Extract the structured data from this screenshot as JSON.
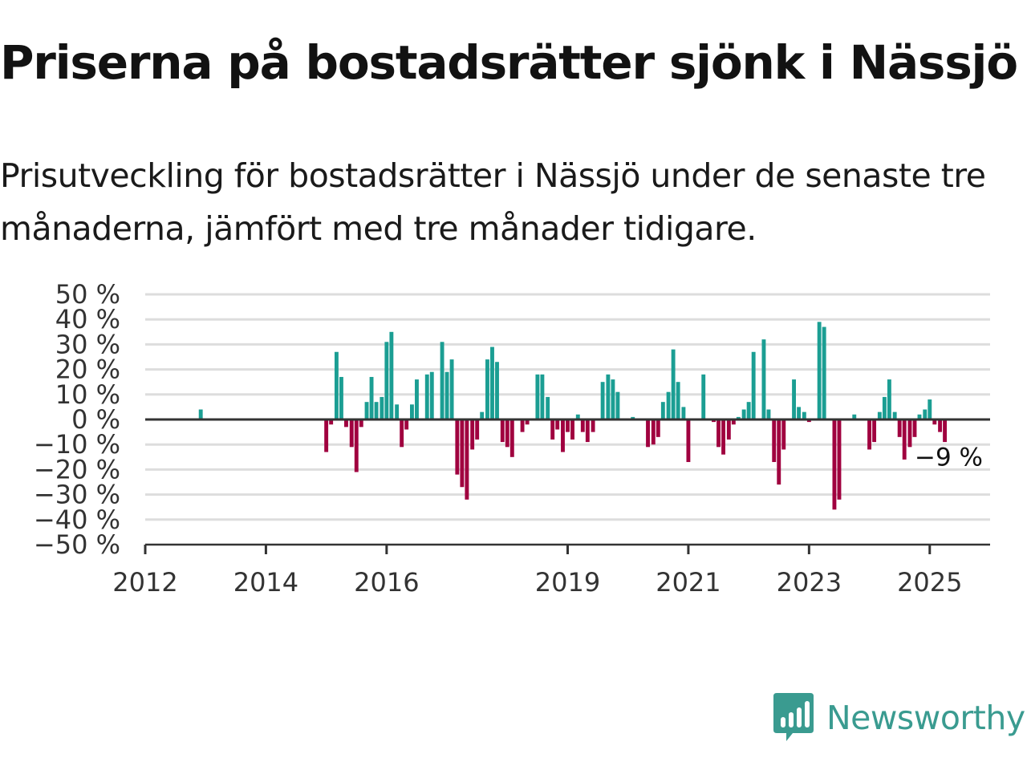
{
  "title": "Priserna på bostadsrätter sjönk i Nässjö",
  "subtitle": "Prisutveckling för bostadsrätter i Nässjö under de senaste tre månaderna, jämfört med tre månader tidigare.",
  "brand": {
    "name": "Newsworthy",
    "color": "#3a9b90",
    "logo_icon": "bar-chart-speech-bubble-icon"
  },
  "colors": {
    "positive": "#1b9e93",
    "negative": "#a0003f",
    "grid": "#dddddd",
    "axis": "#333333"
  },
  "chart_data": {
    "type": "bar",
    "title": "Priserna på bostadsrätter sjönk i Nässjö",
    "subtitle": "Prisutveckling för bostadsrätter i Nässjö under de senaste tre månaderna, jämfört med tre månader tidigare.",
    "xlabel": "",
    "ylabel": "",
    "ylim": [
      -50,
      50
    ],
    "xlim": [
      2012.0,
      2026.0
    ],
    "y_ticks": [
      50,
      40,
      30,
      20,
      10,
      0,
      -10,
      -20,
      -30,
      -40,
      -50
    ],
    "y_tick_labels": [
      "50 %",
      "40 %",
      "30 %",
      "20 %",
      "10 %",
      "0 %",
      "−10 %",
      "−20 %",
      "−30 %",
      "−40 %",
      "−50 %"
    ],
    "x_ticks": [
      2012,
      2014,
      2016,
      2019,
      2021,
      2023,
      2025
    ],
    "x_tick_labels": [
      "2012",
      "2014",
      "2016",
      "2019",
      "2021",
      "2023",
      "2025"
    ],
    "grid": true,
    "last_value_label": "−9 %",
    "unit": "%",
    "bars": [
      {
        "x": 2012.92,
        "value": 4
      },
      {
        "x": 2015.0,
        "value": -13
      },
      {
        "x": 2015.08,
        "value": -2
      },
      {
        "x": 2015.17,
        "value": 27
      },
      {
        "x": 2015.25,
        "value": 17
      },
      {
        "x": 2015.33,
        "value": -3
      },
      {
        "x": 2015.42,
        "value": -11
      },
      {
        "x": 2015.5,
        "value": -21
      },
      {
        "x": 2015.58,
        "value": -3
      },
      {
        "x": 2015.67,
        "value": 7
      },
      {
        "x": 2015.75,
        "value": 17
      },
      {
        "x": 2015.83,
        "value": 7
      },
      {
        "x": 2015.92,
        "value": 9
      },
      {
        "x": 2016.0,
        "value": 31
      },
      {
        "x": 2016.08,
        "value": 35
      },
      {
        "x": 2016.17,
        "value": 6
      },
      {
        "x": 2016.25,
        "value": -11
      },
      {
        "x": 2016.33,
        "value": -4
      },
      {
        "x": 2016.42,
        "value": 6
      },
      {
        "x": 2016.5,
        "value": 16
      },
      {
        "x": 2016.67,
        "value": 18
      },
      {
        "x": 2016.75,
        "value": 19
      },
      {
        "x": 2016.92,
        "value": 31
      },
      {
        "x": 2017.0,
        "value": 19
      },
      {
        "x": 2017.08,
        "value": 24
      },
      {
        "x": 2017.17,
        "value": -22
      },
      {
        "x": 2017.25,
        "value": -27
      },
      {
        "x": 2017.33,
        "value": -32
      },
      {
        "x": 2017.42,
        "value": -12
      },
      {
        "x": 2017.5,
        "value": -8
      },
      {
        "x": 2017.58,
        "value": 3
      },
      {
        "x": 2017.67,
        "value": 24
      },
      {
        "x": 2017.75,
        "value": 29
      },
      {
        "x": 2017.83,
        "value": 23
      },
      {
        "x": 2017.92,
        "value": -9
      },
      {
        "x": 2018.0,
        "value": -11
      },
      {
        "x": 2018.08,
        "value": -15
      },
      {
        "x": 2018.25,
        "value": -5
      },
      {
        "x": 2018.33,
        "value": -2
      },
      {
        "x": 2018.5,
        "value": 18
      },
      {
        "x": 2018.58,
        "value": 18
      },
      {
        "x": 2018.67,
        "value": 9
      },
      {
        "x": 2018.75,
        "value": -8
      },
      {
        "x": 2018.83,
        "value": -4
      },
      {
        "x": 2018.92,
        "value": -13
      },
      {
        "x": 2019.0,
        "value": -5
      },
      {
        "x": 2019.08,
        "value": -8
      },
      {
        "x": 2019.17,
        "value": 2
      },
      {
        "x": 2019.25,
        "value": -5
      },
      {
        "x": 2019.33,
        "value": -9
      },
      {
        "x": 2019.42,
        "value": -5
      },
      {
        "x": 2019.58,
        "value": 15
      },
      {
        "x": 2019.67,
        "value": 18
      },
      {
        "x": 2019.75,
        "value": 16
      },
      {
        "x": 2019.83,
        "value": 11
      },
      {
        "x": 2020.08,
        "value": 1
      },
      {
        "x": 2020.33,
        "value": -11
      },
      {
        "x": 2020.42,
        "value": -10
      },
      {
        "x": 2020.5,
        "value": -7
      },
      {
        "x": 2020.58,
        "value": 7
      },
      {
        "x": 2020.67,
        "value": 11
      },
      {
        "x": 2020.75,
        "value": 28
      },
      {
        "x": 2020.83,
        "value": 15
      },
      {
        "x": 2020.92,
        "value": 5
      },
      {
        "x": 2021.0,
        "value": -17
      },
      {
        "x": 2021.25,
        "value": 18
      },
      {
        "x": 2021.42,
        "value": -1
      },
      {
        "x": 2021.5,
        "value": -11
      },
      {
        "x": 2021.58,
        "value": -14
      },
      {
        "x": 2021.67,
        "value": -8
      },
      {
        "x": 2021.75,
        "value": -2
      },
      {
        "x": 2021.83,
        "value": 1
      },
      {
        "x": 2021.92,
        "value": 4
      },
      {
        "x": 2022.0,
        "value": 7
      },
      {
        "x": 2022.08,
        "value": 27
      },
      {
        "x": 2022.25,
        "value": 32
      },
      {
        "x": 2022.33,
        "value": 4
      },
      {
        "x": 2022.42,
        "value": -17
      },
      {
        "x": 2022.5,
        "value": -26
      },
      {
        "x": 2022.58,
        "value": -12
      },
      {
        "x": 2022.75,
        "value": 16
      },
      {
        "x": 2022.83,
        "value": 5
      },
      {
        "x": 2022.92,
        "value": 3
      },
      {
        "x": 2023.0,
        "value": -1
      },
      {
        "x": 2023.17,
        "value": 39
      },
      {
        "x": 2023.25,
        "value": 37
      },
      {
        "x": 2023.42,
        "value": -36
      },
      {
        "x": 2023.5,
        "value": -32
      },
      {
        "x": 2023.75,
        "value": 2
      },
      {
        "x": 2024.0,
        "value": -12
      },
      {
        "x": 2024.08,
        "value": -9
      },
      {
        "x": 2024.17,
        "value": 3
      },
      {
        "x": 2024.25,
        "value": 9
      },
      {
        "x": 2024.33,
        "value": 16
      },
      {
        "x": 2024.42,
        "value": 3
      },
      {
        "x": 2024.5,
        "value": -7
      },
      {
        "x": 2024.58,
        "value": -16
      },
      {
        "x": 2024.67,
        "value": -11
      },
      {
        "x": 2024.75,
        "value": -7
      },
      {
        "x": 2024.83,
        "value": 2
      },
      {
        "x": 2024.92,
        "value": 4
      },
      {
        "x": 2025.0,
        "value": 8
      },
      {
        "x": 2025.08,
        "value": -2
      },
      {
        "x": 2025.17,
        "value": -5
      },
      {
        "x": 2025.25,
        "value": -9
      }
    ]
  }
}
